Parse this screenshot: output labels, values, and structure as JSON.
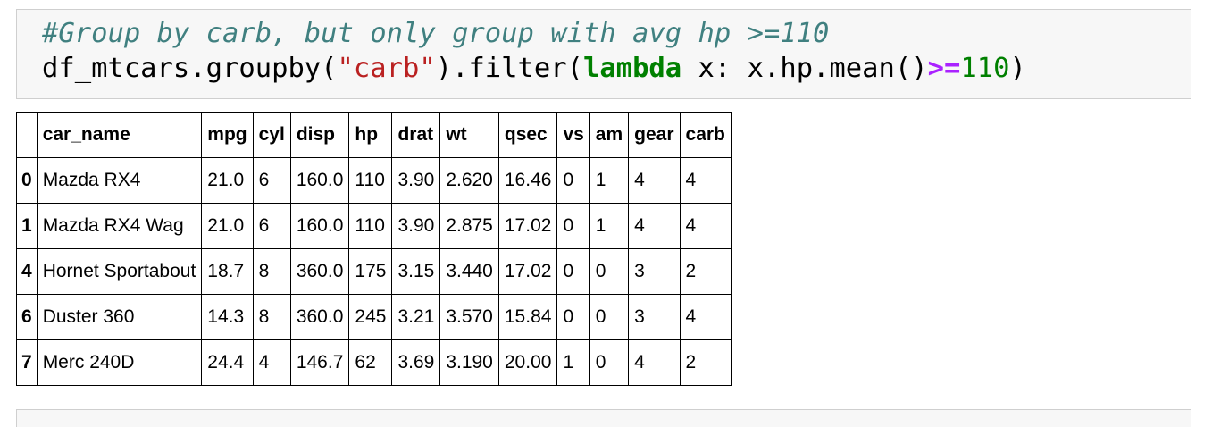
{
  "code_cell": {
    "line1": {
      "comment": "#Group by carb, but only group with avg hp >=110"
    },
    "line2": {
      "t1": "df_mtcars.groupby(",
      "t2": "\"carb\"",
      "t3": ").filter(",
      "t4": "lambda",
      "t5": " x: x.hp.mean()",
      "t6": ">=",
      "t7": "110",
      "t8": ")"
    }
  },
  "table": {
    "columns": [
      "",
      "car_name",
      "mpg",
      "cyl",
      "disp",
      "hp",
      "drat",
      "wt",
      "qsec",
      "vs",
      "am",
      "gear",
      "carb"
    ],
    "rows": [
      {
        "index": "0",
        "cells": [
          "Mazda RX4",
          "21.0",
          "6",
          "160.0",
          "110",
          "3.90",
          "2.620",
          "16.46",
          "0",
          "1",
          "4",
          "4"
        ]
      },
      {
        "index": "1",
        "cells": [
          "Mazda RX4 Wag",
          "21.0",
          "6",
          "160.0",
          "110",
          "3.90",
          "2.875",
          "17.02",
          "0",
          "1",
          "4",
          "4"
        ]
      },
      {
        "index": "4",
        "cells": [
          "Hornet Sportabout",
          "18.7",
          "8",
          "360.0",
          "175",
          "3.15",
          "3.440",
          "17.02",
          "0",
          "0",
          "3",
          "2"
        ]
      },
      {
        "index": "6",
        "cells": [
          "Duster 360",
          "14.3",
          "8",
          "360.0",
          "245",
          "3.21",
          "3.570",
          "15.84",
          "0",
          "0",
          "3",
          "4"
        ]
      },
      {
        "index": "7",
        "cells": [
          "Merc 240D",
          "24.4",
          "4",
          "146.7",
          "62",
          "3.69",
          "3.190",
          "20.00",
          "1",
          "0",
          "4",
          "2"
        ]
      }
    ]
  },
  "colors": {
    "comment": "#408080",
    "string": "#ba2121",
    "keyword": "#008000",
    "operator": "#aa22ff",
    "number": "#008000",
    "cell_background": "#f7f7f7",
    "cell_border": "#cfcfcf"
  }
}
